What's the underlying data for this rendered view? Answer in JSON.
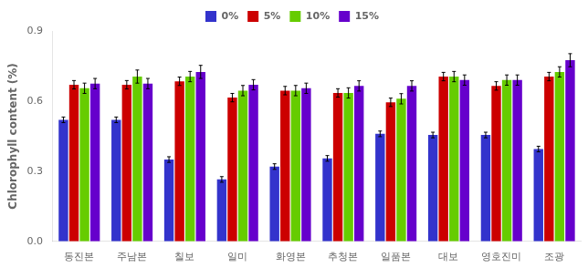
{
  "chart_data": {
    "type": "bar",
    "ylabel": "Chlorophyll content (%)",
    "categories": [
      "동진본",
      "주남본",
      "칠보",
      "일미",
      "화영본",
      "추청본",
      "일품본",
      "대보",
      "영호진미",
      "조광"
    ],
    "series": [
      {
        "name": "0%",
        "color": "#3333cc",
        "values": [
          0.52,
          0.52,
          0.35,
          0.265,
          0.32,
          0.355,
          0.46,
          0.455,
          0.455,
          0.395
        ],
        "errors": [
          0.012,
          0.012,
          0.012,
          0.012,
          0.012,
          0.012,
          0.012,
          0.012,
          0.012,
          0.012
        ]
      },
      {
        "name": "5%",
        "color": "#cc0000",
        "values": [
          0.67,
          0.67,
          0.685,
          0.615,
          0.645,
          0.635,
          0.595,
          0.705,
          0.665,
          0.705
        ],
        "errors": [
          0.018,
          0.018,
          0.018,
          0.018,
          0.018,
          0.018,
          0.018,
          0.018,
          0.018,
          0.018
        ]
      },
      {
        "name": "10%",
        "color": "#66cc00",
        "values": [
          0.655,
          0.705,
          0.705,
          0.645,
          0.645,
          0.635,
          0.61,
          0.705,
          0.69,
          0.725
        ],
        "errors": [
          0.022,
          0.028,
          0.022,
          0.022,
          0.022,
          0.022,
          0.022,
          0.022,
          0.022,
          0.022
        ]
      },
      {
        "name": "15%",
        "color": "#6600cc",
        "values": [
          0.675,
          0.675,
          0.725,
          0.67,
          0.655,
          0.665,
          0.665,
          0.69,
          0.69,
          0.775
        ],
        "errors": [
          0.022,
          0.022,
          0.028,
          0.022,
          0.022,
          0.022,
          0.022,
          0.022,
          0.022,
          0.028
        ]
      }
    ],
    "ylim": [
      0,
      0.9
    ],
    "yticks": [
      {
        "value": 0,
        "label": "0.0"
      },
      0.3,
      0.6,
      0.9
    ],
    "grid": false,
    "legend": "top"
  }
}
